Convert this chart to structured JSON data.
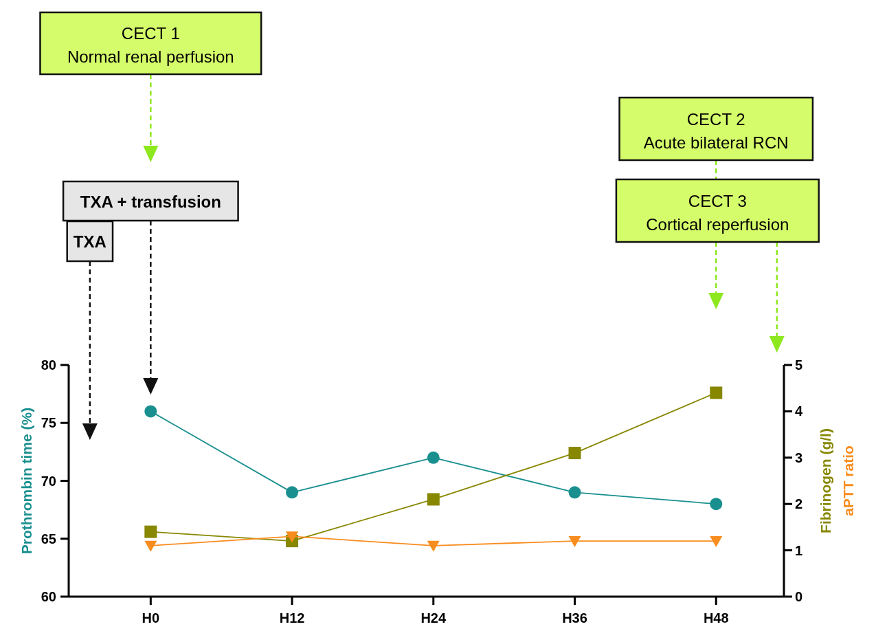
{
  "chart_data": {
    "type": "line",
    "categories": [
      "H0",
      "H12",
      "H24",
      "H36",
      "H48"
    ],
    "ylabel": "Prothrombin time (%)",
    "y2label": "Fibrinogen (g/l)\naPTT ratio",
    "ylim": [
      60,
      80
    ],
    "yticks": [
      60,
      65,
      70,
      75,
      80
    ],
    "y2lim": [
      0,
      5
    ],
    "y2ticks": [
      0,
      1,
      2,
      3,
      4,
      5
    ],
    "series": [
      {
        "color": "#1a8f8f",
        "marker": "circle",
        "values": [
          76,
          69,
          72,
          69,
          68
        ]
      },
      {
        "color": "#878700",
        "marker": "square",
        "axis": "y2",
        "values": [
          1.4,
          1.2,
          2.1,
          3.1,
          4.4
        ]
      },
      {
        "color": "#f98c1e",
        "marker": "triangle",
        "axis": "y2",
        "values": [
          1.1,
          1.3,
          1.1,
          1.2,
          1.2
        ]
      }
    ],
    "annotations": [
      "TXA",
      "TXA + transfusion",
      "CECT 1\nNormal renal perfusion",
      "CECT 2\nAcute bilateral RCN",
      "CECT 3\nCortical reperfusion"
    ],
    "grid": false
  }
}
